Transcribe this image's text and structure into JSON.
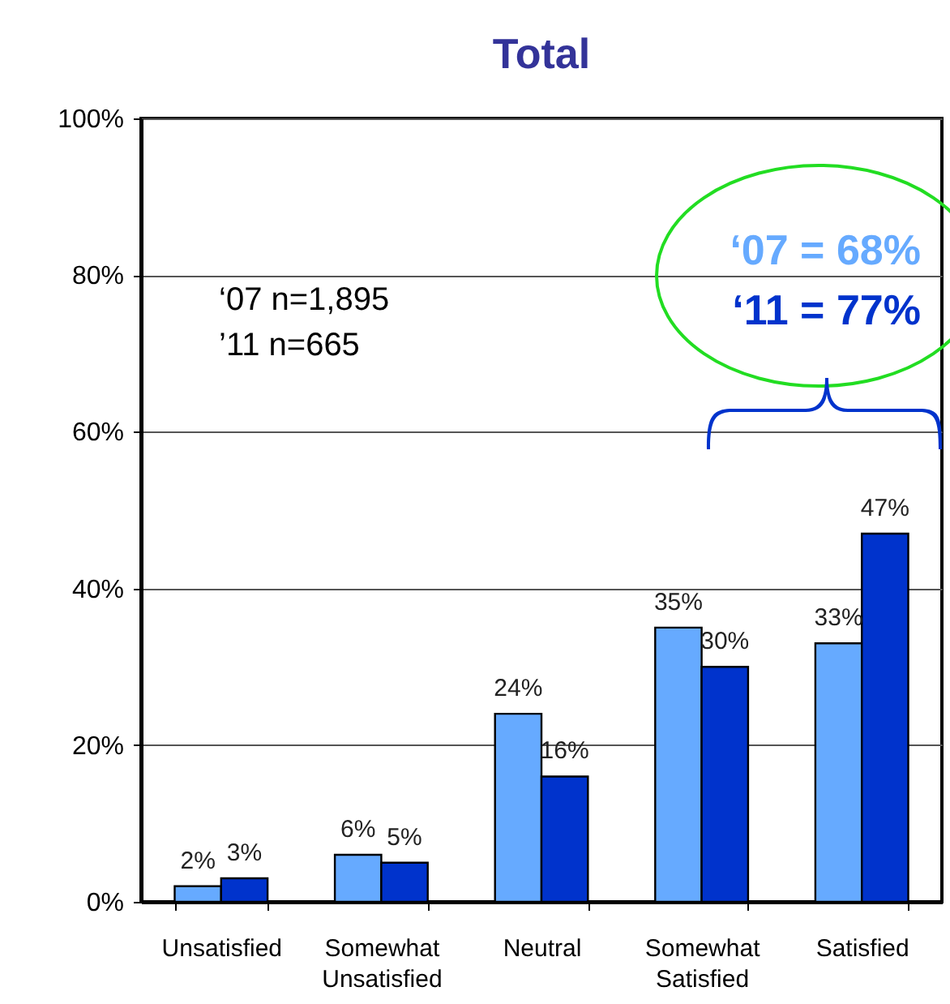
{
  "chart_data": {
    "type": "bar",
    "title": "Total",
    "categories": [
      "Unsatisfied",
      "Somewhat Unsatisfied",
      "Neutral",
      "Somewhat Satisfied",
      "Satisfied"
    ],
    "series": [
      {
        "color": "#66aaff",
        "values": [
          2,
          6,
          24,
          35,
          33
        ],
        "value_labels": [
          "2%",
          "6%",
          "24%",
          "35%",
          "33%"
        ]
      },
      {
        "color": "#0033cc",
        "values": [
          3,
          5,
          16,
          30,
          47
        ],
        "value_labels": [
          "3%",
          "5%",
          "16%",
          "30%",
          "47%"
        ]
      }
    ],
    "ylim": [
      0,
      100
    ],
    "yticks": [
      {
        "value": 0,
        "label": "0%"
      },
      {
        "value": 20,
        "label": "20%"
      },
      {
        "value": 40,
        "label": "40%"
      },
      {
        "value": 60,
        "label": "60%"
      },
      {
        "value": 80,
        "label": "80%"
      },
      {
        "value": 100,
        "label": "100%"
      }
    ],
    "grid": "y",
    "annotations": [
      "‘07 n=1,895",
      "’11 n=665",
      "‘07 = 68%",
      "‘11 = 77%"
    ]
  }
}
